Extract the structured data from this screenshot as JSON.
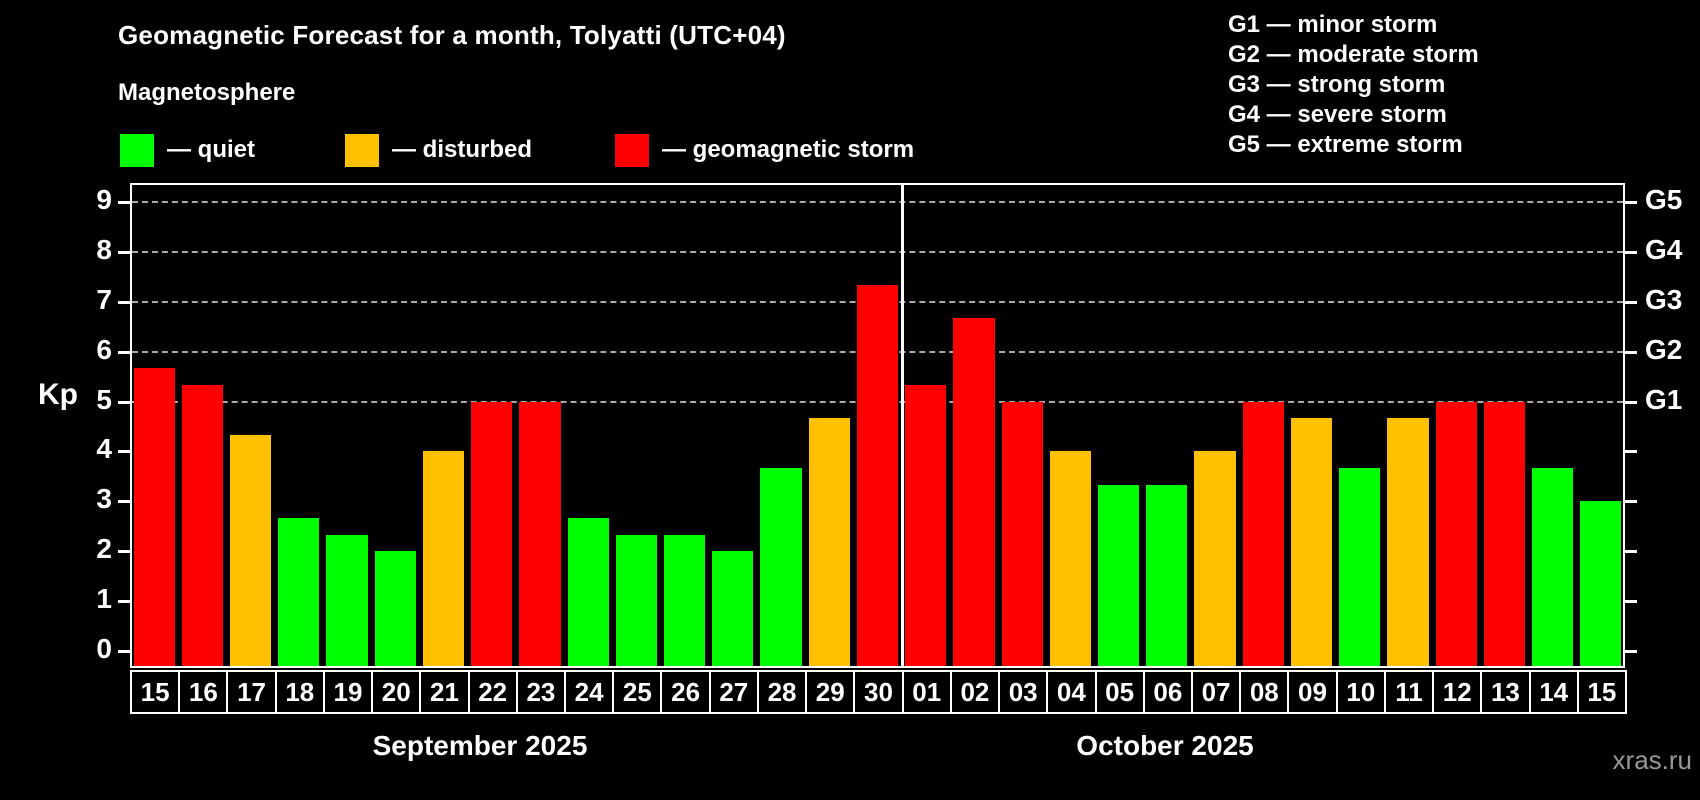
{
  "header": {
    "title": "Geomagnetic Forecast for a month, Tolyatti (UTC+04)",
    "subtitle": "Magnetosphere"
  },
  "legend": {
    "items": [
      {
        "name": "quiet",
        "swatch_color": "#00ff00",
        "label": "— quiet"
      },
      {
        "name": "disturbed",
        "swatch_color": "#ffc000",
        "label": "— disturbed"
      },
      {
        "name": "storm",
        "swatch_color": "#ff0000",
        "label": "— geomagnetic storm"
      }
    ]
  },
  "storm_scale_legend": {
    "lines": [
      "G1 — minor storm",
      "G2 — moderate storm",
      "G3 — strong storm",
      "G4 — severe storm",
      "G5 — extreme storm"
    ]
  },
  "watermark": "xras.ru",
  "chart_data": {
    "type": "bar",
    "title": "Geomagnetic Forecast for a month, Tolyatti (UTC+04)",
    "ylabel": "Kp",
    "ylim": [
      0,
      9
    ],
    "left_ticks": [
      0,
      1,
      2,
      3,
      4,
      5,
      6,
      7,
      8,
      9
    ],
    "grid_levels": [
      5,
      6,
      7,
      8,
      9
    ],
    "right_axis": [
      {
        "kp": 5,
        "label": "G1"
      },
      {
        "kp": 6,
        "label": "G2"
      },
      {
        "kp": 7,
        "label": "G3"
      },
      {
        "kp": 8,
        "label": "G4"
      },
      {
        "kp": 9,
        "label": "G5"
      }
    ],
    "status_colors": {
      "quiet": "#00ff00",
      "disturbed": "#ffc000",
      "storm": "#ff0000"
    },
    "legend_position": "top-left",
    "grid": "dashed-horizontal-at-storm-levels",
    "months": [
      {
        "label": "September 2025",
        "days": [
          {
            "day": "15",
            "kp": 5.67,
            "status": "storm"
          },
          {
            "day": "16",
            "kp": 5.33,
            "status": "storm"
          },
          {
            "day": "17",
            "kp": 4.33,
            "status": "disturbed"
          },
          {
            "day": "18",
            "kp": 2.67,
            "status": "quiet"
          },
          {
            "day": "19",
            "kp": 2.33,
            "status": "quiet"
          },
          {
            "day": "20",
            "kp": 2.0,
            "status": "quiet"
          },
          {
            "day": "21",
            "kp": 4.0,
            "status": "disturbed"
          },
          {
            "day": "22",
            "kp": 5.0,
            "status": "storm"
          },
          {
            "day": "23",
            "kp": 5.0,
            "status": "storm"
          },
          {
            "day": "24",
            "kp": 2.67,
            "status": "quiet"
          },
          {
            "day": "25",
            "kp": 2.33,
            "status": "quiet"
          },
          {
            "day": "26",
            "kp": 2.33,
            "status": "quiet"
          },
          {
            "day": "27",
            "kp": 2.0,
            "status": "quiet"
          },
          {
            "day": "28",
            "kp": 3.67,
            "status": "quiet"
          },
          {
            "day": "29",
            "kp": 4.67,
            "status": "disturbed"
          },
          {
            "day": "30",
            "kp": 7.33,
            "status": "storm"
          }
        ]
      },
      {
        "label": "October 2025",
        "days": [
          {
            "day": "01",
            "kp": 5.33,
            "status": "storm"
          },
          {
            "day": "02",
            "kp": 6.67,
            "status": "storm"
          },
          {
            "day": "03",
            "kp": 5.0,
            "status": "storm"
          },
          {
            "day": "04",
            "kp": 4.0,
            "status": "disturbed"
          },
          {
            "day": "05",
            "kp": 3.33,
            "status": "quiet"
          },
          {
            "day": "06",
            "kp": 3.33,
            "status": "quiet"
          },
          {
            "day": "07",
            "kp": 4.0,
            "status": "disturbed"
          },
          {
            "day": "08",
            "kp": 5.0,
            "status": "storm"
          },
          {
            "day": "09",
            "kp": 4.67,
            "status": "disturbed"
          },
          {
            "day": "10",
            "kp": 3.67,
            "status": "quiet"
          },
          {
            "day": "11",
            "kp": 4.67,
            "status": "disturbed"
          },
          {
            "day": "12",
            "kp": 5.0,
            "status": "storm"
          },
          {
            "day": "13",
            "kp": 5.0,
            "status": "storm"
          },
          {
            "day": "14",
            "kp": 3.67,
            "status": "quiet"
          },
          {
            "day": "15",
            "kp": 3.0,
            "status": "quiet"
          }
        ]
      }
    ]
  }
}
